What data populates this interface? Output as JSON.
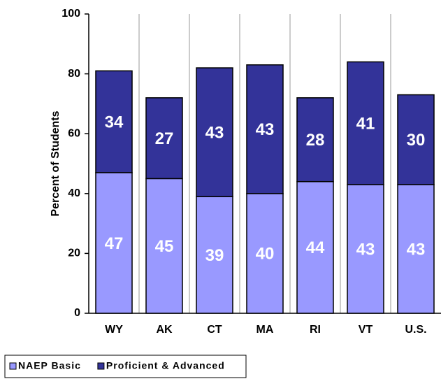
{
  "chart_data": {
    "type": "stacked_bar",
    "categories": [
      "WY",
      "AK",
      "CT",
      "MA",
      "RI",
      "VT",
      "U.S."
    ],
    "series": [
      {
        "name": "NAEP Basic",
        "color": "#9999ff",
        "values": [
          47,
          45,
          39,
          40,
          44,
          43,
          43
        ]
      },
      {
        "name": "Proficient & Advanced",
        "color": "#333399",
        "values": [
          34,
          27,
          43,
          43,
          28,
          41,
          30
        ]
      }
    ],
    "y_label": "Percent of Students",
    "ylim": [
      0,
      100
    ],
    "yticks": [
      0,
      20,
      40,
      60,
      80,
      100
    ]
  }
}
